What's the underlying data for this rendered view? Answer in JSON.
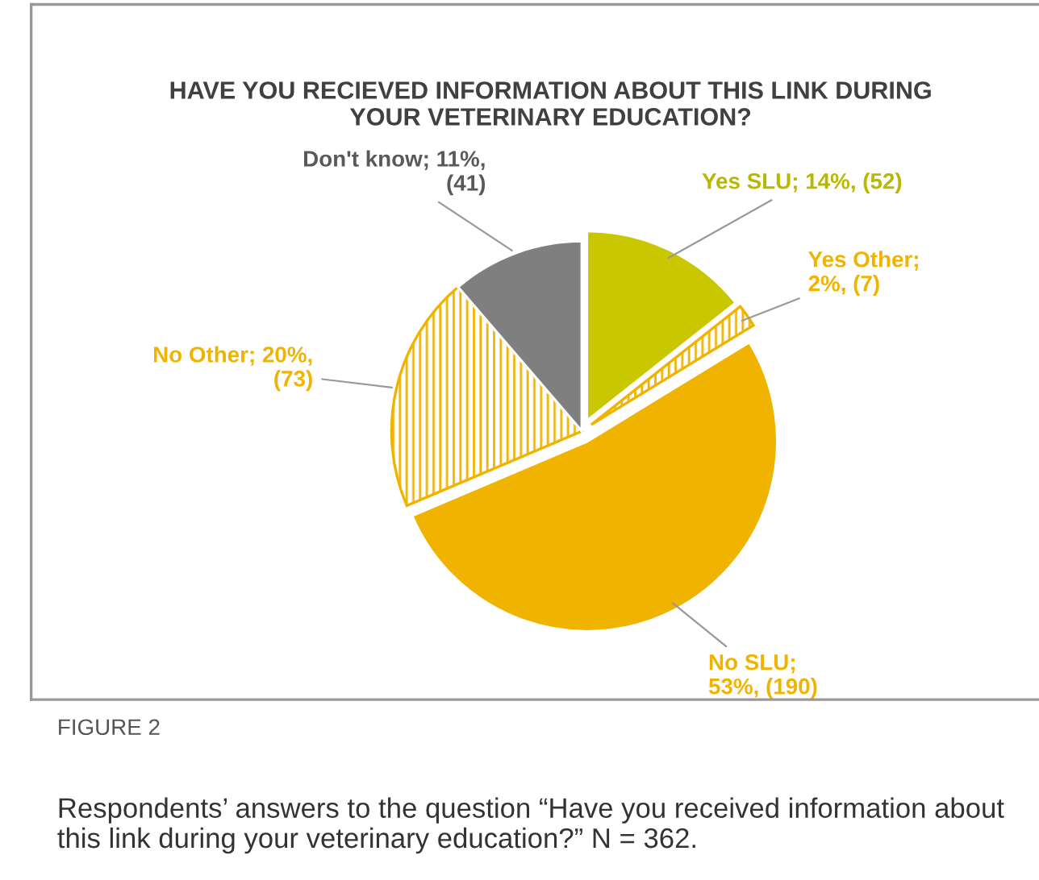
{
  "chart_data": {
    "type": "pie",
    "title": "HAVE YOU RECIEVED INFORMATION ABOUT THIS LINK DURING\nYOUR VETERINARY EDUCATION?",
    "categories": [
      "Yes SLU",
      "Yes Other",
      "No SLU",
      "No Other",
      "Don't know"
    ],
    "values": [
      52,
      7,
      190,
      73,
      41
    ],
    "value_labels": [
      "; 14%, (52)",
      ";\n2%, (7)",
      ";\n53%, (190)",
      "; 20%,\n(73)",
      "; 11%,\n(41)"
    ],
    "colors": [
      "#c9c800",
      "#f0b400",
      "#f0b400",
      "#f0b400",
      "#7f7f7f"
    ],
    "annotations": [
      "FIGURE 2",
      "Respondents’ answers to the question “Have you received information about this link during your veterinary education?” N = 362."
    ],
    "legend": false
  }
}
